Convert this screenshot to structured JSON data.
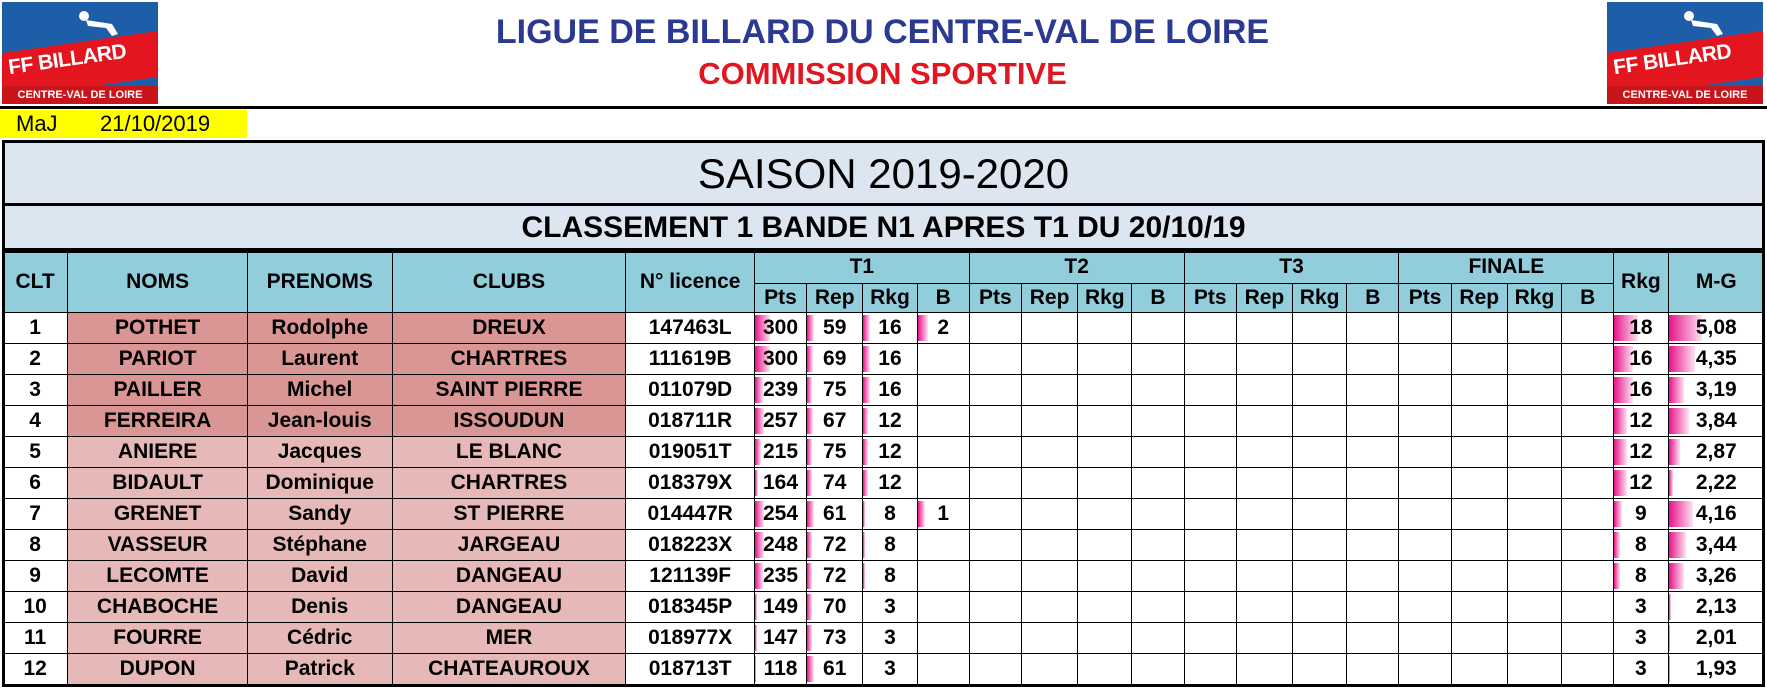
{
  "header": {
    "logo_brand": "FF BILLARD",
    "logo_sub": "CENTRE-VAL DE LOIRE",
    "title": "LIGUE DE BILLARD DU CENTRE-VAL DE LOIRE",
    "subtitle": "COMMISSION SPORTIVE",
    "maj_label": "MaJ",
    "maj_date": "21/10/2019"
  },
  "season": "SAISON 2019-2020",
  "classement_title": "CLASSEMENT 1 BANDE N1 APRES T1 DU 20/10/19",
  "columns": {
    "clt": "CLT",
    "noms": "NOMS",
    "prenoms": "PRENOMS",
    "clubs": "CLUBS",
    "licence": "N° licence",
    "groups": [
      "T1",
      "T2",
      "T3",
      "FINALE"
    ],
    "sub": [
      "Pts",
      "Rep",
      "Rkg",
      "B"
    ],
    "rkg": "Rkg",
    "mg": "M-G"
  },
  "colors": {
    "header_bg": "#92cddc",
    "season_bg": "#dce6f1",
    "qualified_bg": "#da9694",
    "other_bg": "#e6b8b7",
    "bar": "#e7138b",
    "maj_bg": "#ffff00"
  },
  "rows": [
    {
      "clt": "1",
      "nom": "POTHET",
      "prenom": "Rodolphe",
      "club": "DREUX",
      "licence": "147463L",
      "t1": {
        "pts": "300",
        "rep": "59",
        "rkg": "16",
        "b": "2"
      },
      "rkg": "18",
      "mg": "5,08",
      "pts_level": 1.0,
      "rep_level": 0.3,
      "rkg_level": 0.4,
      "b_level": 0.2,
      "tot_level": 1.0,
      "mg_level": 1.0
    },
    {
      "clt": "2",
      "nom": "PARIOT",
      "prenom": "Laurent",
      "club": "CHARTRES",
      "licence": "111619B",
      "t1": {
        "pts": "300",
        "rep": "69",
        "rkg": "16",
        "b": ""
      },
      "rkg": "16",
      "mg": "4,35",
      "pts_level": 1.0,
      "rep_level": 0.25,
      "rkg_level": 0.4,
      "b_level": 0,
      "tot_level": 0.8,
      "mg_level": 0.8
    },
    {
      "clt": "3",
      "nom": "PAILLER",
      "prenom": "Michel",
      "club": "SAINT PIERRE",
      "licence": "011079D",
      "t1": {
        "pts": "239",
        "rep": "75",
        "rkg": "16",
        "b": ""
      },
      "rkg": "16",
      "mg": "3,19",
      "pts_level": 0.5,
      "rep_level": 0.2,
      "rkg_level": 0.4,
      "b_level": 0,
      "tot_level": 0.8,
      "mg_level": 0.45
    },
    {
      "clt": "4",
      "nom": "FERREIRA",
      "prenom": "Jean-louis",
      "club": "ISSOUDUN",
      "licence": "018711R",
      "t1": {
        "pts": "257",
        "rep": "67",
        "rkg": "12",
        "b": ""
      },
      "rkg": "12",
      "mg": "3,84",
      "pts_level": 0.6,
      "rep_level": 0.25,
      "rkg_level": 0.25,
      "b_level": 0,
      "tot_level": 0.5,
      "mg_level": 0.6
    },
    {
      "clt": "5",
      "nom": "ANIERE",
      "prenom": "Jacques",
      "club": "LE BLANC",
      "licence": "019051T",
      "t1": {
        "pts": "215",
        "rep": "75",
        "rkg": "12",
        "b": ""
      },
      "rkg": "12",
      "mg": "2,87",
      "pts_level": 0.35,
      "rep_level": 0.2,
      "rkg_level": 0.25,
      "b_level": 0,
      "tot_level": 0.5,
      "mg_level": 0.35
    },
    {
      "clt": "6",
      "nom": "BIDAULT",
      "prenom": "Dominique",
      "club": "CHARTRES",
      "licence": "018379X",
      "t1": {
        "pts": "164",
        "rep": "74",
        "rkg": "12",
        "b": ""
      },
      "rkg": "12",
      "mg": "2,22",
      "pts_level": 0.2,
      "rep_level": 0.2,
      "rkg_level": 0.25,
      "b_level": 0,
      "tot_level": 0.5,
      "mg_level": 0.15
    },
    {
      "clt": "7",
      "nom": "GRENET",
      "prenom": "Sandy",
      "club": "ST PIERRE",
      "licence": "014447R",
      "t1": {
        "pts": "254",
        "rep": "61",
        "rkg": "8",
        "b": "1"
      },
      "rkg": "9",
      "mg": "4,16",
      "pts_level": 0.6,
      "rep_level": 0.3,
      "rkg_level": 0.1,
      "b_level": 0.15,
      "tot_level": 0.3,
      "mg_level": 0.75
    },
    {
      "clt": "8",
      "nom": "VASSEUR",
      "prenom": "Stéphane",
      "club": "JARGEAU",
      "licence": "018223X",
      "t1": {
        "pts": "248",
        "rep": "72",
        "rkg": "8",
        "b": ""
      },
      "rkg": "8",
      "mg": "3,44",
      "pts_level": 0.55,
      "rep_level": 0.2,
      "rkg_level": 0.1,
      "b_level": 0,
      "tot_level": 0.25,
      "mg_level": 0.5
    },
    {
      "clt": "9",
      "nom": "LECOMTE",
      "prenom": "David",
      "club": "DANGEAU",
      "licence": "121139F",
      "t1": {
        "pts": "235",
        "rep": "72",
        "rkg": "8",
        "b": ""
      },
      "rkg": "8",
      "mg": "3,26",
      "pts_level": 0.5,
      "rep_level": 0.2,
      "rkg_level": 0.1,
      "b_level": 0,
      "tot_level": 0.25,
      "mg_level": 0.45
    },
    {
      "clt": "10",
      "nom": "CHABOCHE",
      "prenom": "Denis",
      "club": "DANGEAU",
      "licence": "018345P",
      "t1": {
        "pts": "149",
        "rep": "70",
        "rkg": "3",
        "b": ""
      },
      "rkg": "3",
      "mg": "2,13",
      "pts_level": 0.15,
      "rep_level": 0.2,
      "rkg_level": 0,
      "b_level": 0,
      "tot_level": 0,
      "mg_level": 0.1
    },
    {
      "clt": "11",
      "nom": "FOURRE",
      "prenom": "Cédric",
      "club": "MER",
      "licence": "018977X",
      "t1": {
        "pts": "147",
        "rep": "73",
        "rkg": "3",
        "b": ""
      },
      "rkg": "3",
      "mg": "2,01",
      "pts_level": 0.15,
      "rep_level": 0.2,
      "rkg_level": 0,
      "b_level": 0,
      "tot_level": 0,
      "mg_level": 0.05
    },
    {
      "clt": "12",
      "nom": "DUPON",
      "prenom": "Patrick",
      "club": "CHATEAUROUX",
      "licence": "018713T",
      "t1": {
        "pts": "118",
        "rep": "61",
        "rkg": "3",
        "b": ""
      },
      "rkg": "3",
      "mg": "1,93",
      "pts_level": 0.1,
      "rep_level": 0.3,
      "rkg_level": 0,
      "b_level": 0,
      "tot_level": 0,
      "mg_level": 0.02
    }
  ]
}
